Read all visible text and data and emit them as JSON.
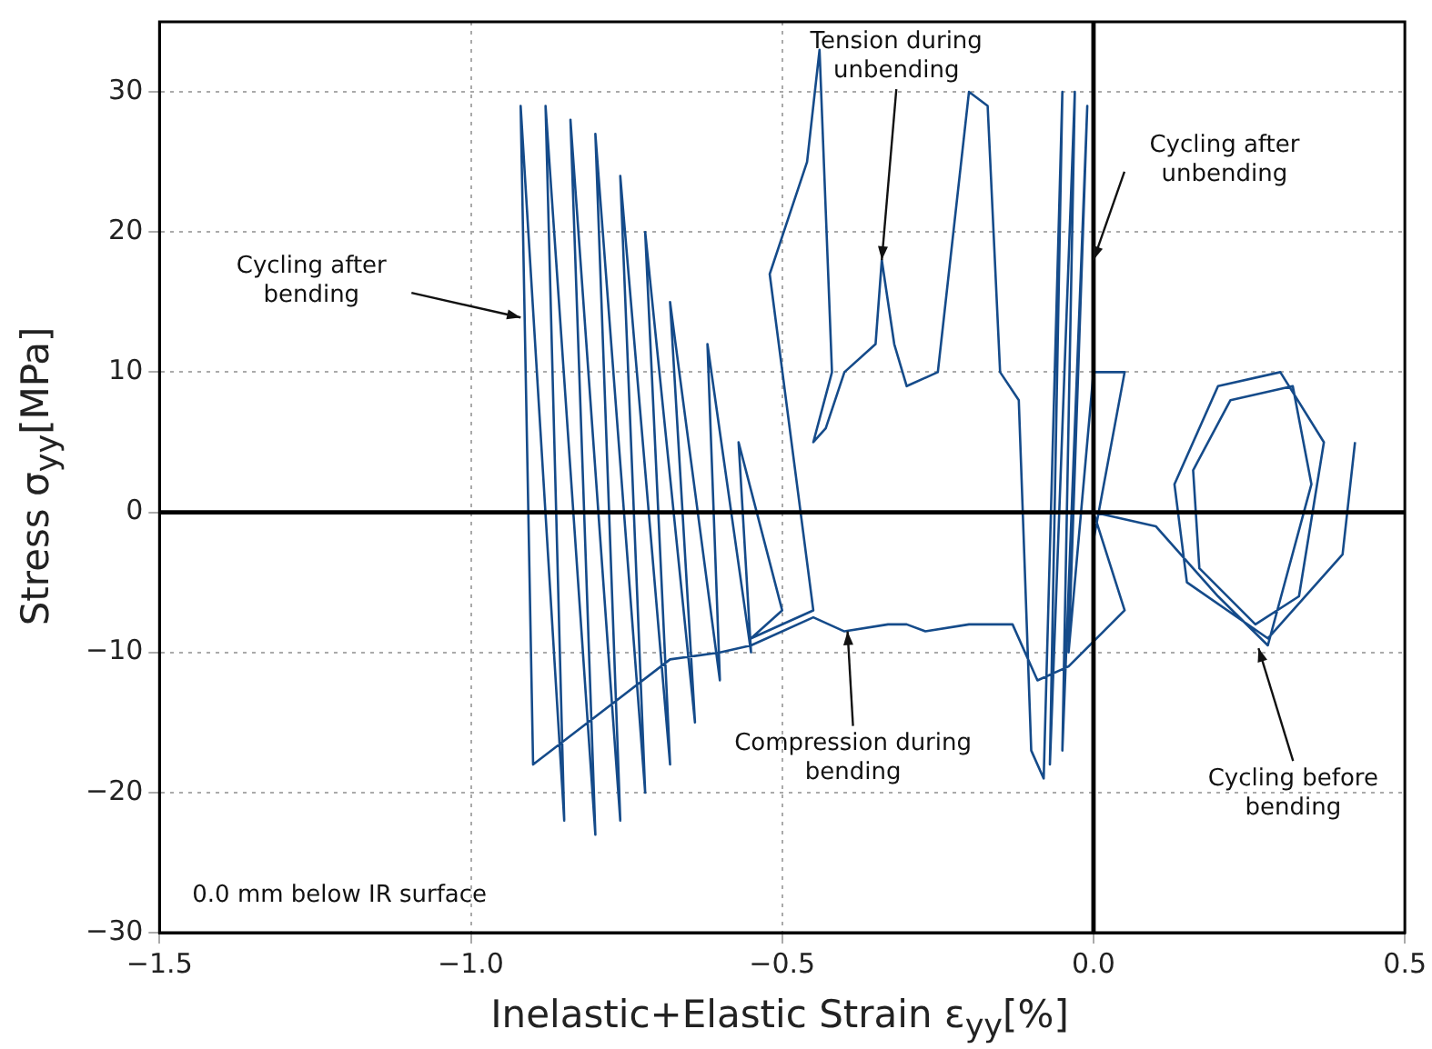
{
  "chart_data": {
    "type": "line",
    "xlabel": "Inelastic+Elastic Strain ε$_{yy}$[%]",
    "ylabel": "Stress σ$_{yy}$[MPa]",
    "xlim": [
      -1.5,
      0.5
    ],
    "xticks": [
      {
        "value": -1.5,
        "label": "−1.5"
      },
      {
        "value": -1.0,
        "label": "−1.0"
      },
      {
        "value": -0.5,
        "label": "−0.5"
      },
      {
        "value": 0,
        "label": "0.0"
      },
      {
        "value": 0.5,
        "label": "0.5"
      }
    ],
    "ylim": [
      -30,
      35
    ],
    "yticks": [
      {
        "value": -30,
        "label": "−30"
      },
      {
        "value": -20,
        "label": "−20"
      },
      {
        "value": -10,
        "label": "−10"
      },
      0,
      10,
      20,
      30
    ],
    "grid": true,
    "legend": false,
    "marker": "none",
    "line_style": "solid",
    "series": [
      {
        "color": "#000000",
        "x": [
          0,
          0
        ],
        "values": [
          -30,
          35
        ]
      },
      {
        "color": "#000000",
        "x": [
          -1.5,
          0.5
        ],
        "values": [
          0,
          0
        ]
      },
      {
        "color": "#154b8a",
        "x": [
          0.42,
          0.4,
          0.28,
          0.15,
          0.13,
          0.2,
          0.3,
          0.37,
          0.33,
          0.26,
          0.17,
          0.16,
          0.22,
          0.32,
          0.35,
          0.28,
          0.2,
          0.1,
          0.0,
          0.05,
          -0.04,
          -0.09,
          -0.13,
          -0.2,
          -0.27,
          -0.3,
          -0.33,
          -0.4,
          -0.45,
          -0.55,
          -0.6,
          -0.68,
          -0.9,
          -0.92,
          -0.85,
          -0.88,
          -0.8,
          -0.84,
          -0.76,
          -0.8,
          -0.72,
          -0.76,
          -0.68,
          -0.72,
          -0.64,
          -0.68,
          -0.6,
          -0.62,
          -0.55,
          -0.57,
          -0.5,
          -0.55,
          -0.45,
          -0.52,
          -0.46,
          -0.44,
          -0.42,
          -0.45,
          -0.43,
          -0.4,
          -0.35,
          -0.34,
          -0.32,
          -0.3,
          -0.25,
          -0.2,
          -0.17,
          -0.15,
          -0.12,
          -0.1,
          -0.08,
          -0.05,
          -0.07,
          -0.03,
          -0.05,
          -0.01,
          -0.04,
          0.0,
          0.05,
          0.0
        ],
        "values": [
          5,
          -3,
          -9,
          -5,
          2,
          9,
          10,
          5,
          -6,
          -8,
          -4,
          3,
          8,
          9,
          2,
          -9.5,
          -6,
          -1,
          0,
          -7,
          -11,
          -12,
          -8,
          -8,
          -8.5,
          -8,
          -8,
          -8.5,
          -7.5,
          -9.5,
          -10,
          -10.5,
          -18,
          29,
          -22,
          29,
          -23,
          28,
          -22,
          27,
          -20,
          24,
          -18,
          20,
          -15,
          15,
          -12,
          12,
          -10,
          5,
          -7,
          -9,
          -7,
          17,
          25,
          33,
          10,
          5,
          6,
          10,
          12,
          18,
          12,
          9,
          10,
          30,
          29,
          10,
          8,
          -17,
          -19,
          30,
          -18,
          30,
          -17,
          29,
          -10,
          10,
          10,
          -2
        ]
      }
    ],
    "annotations": [
      {
        "text": "Cycling after\nbending",
        "x": -0.92,
        "y": 13.9
      },
      {
        "text": "Tension during\nunbending",
        "x": -0.34,
        "y": 18
      },
      {
        "text": "Cycling after\nunbending",
        "x": 0,
        "y": 18
      },
      {
        "text": "Compression during\nbending",
        "x": -0.395,
        "y": -8.5
      },
      {
        "text": "Cycling before\nbending",
        "x": 0.265,
        "y": -9.7
      },
      "0.0 mm below IR surface"
    ]
  }
}
